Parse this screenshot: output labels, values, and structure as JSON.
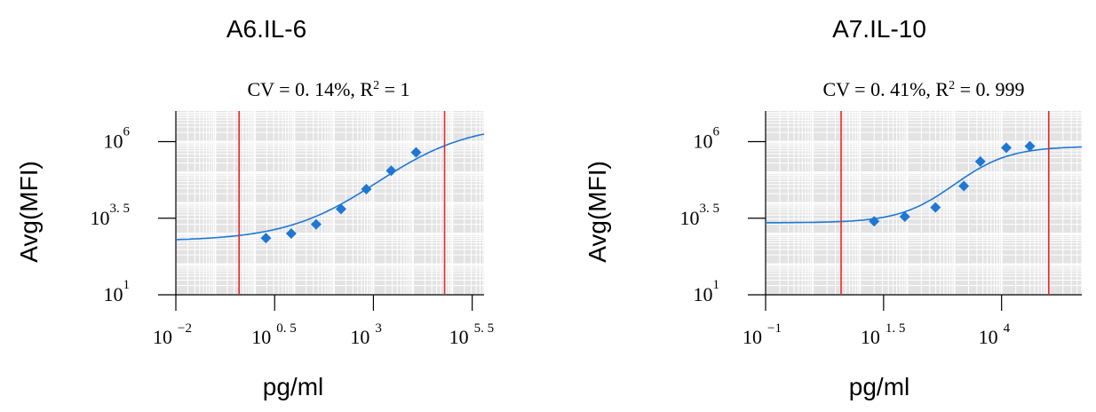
{
  "chart_data": [
    {
      "type": "scatter",
      "title": "A6.IL-6",
      "stats": {
        "cv": "CV = 0. 14%",
        "r2_prefix": ", R",
        "r2_sup": "2",
        "r2_value": " = 1"
      },
      "xlabel": "pg/ml",
      "ylabel": "Avg(MFI)",
      "x_scale": "log10",
      "y_scale": "log10",
      "xlim_log10": [
        -2,
        5.8
      ],
      "ylim_log10": [
        1,
        7.0
      ],
      "x_ticks": [
        {
          "base": "10",
          "exp": "−2",
          "log10": -2
        },
        {
          "base": "10",
          "exp": "0. 5",
          "log10": 0.5
        },
        {
          "base": "10",
          "exp": "3",
          "log10": 3
        },
        {
          "base": "10",
          "exp": "5. 5",
          "log10": 5.5
        }
      ],
      "y_ticks": [
        {
          "base": "10",
          "exp": "1",
          "log10": 1
        },
        {
          "base": "10",
          "exp": "3. 5",
          "log10": 3.5
        },
        {
          "base": "10",
          "exp": "6",
          "log10": 6
        }
      ],
      "points_log10": [
        [
          0.28,
          2.85
        ],
        [
          0.92,
          3.0
        ],
        [
          1.55,
          3.3
        ],
        [
          2.18,
          3.8
        ],
        [
          2.82,
          4.45
        ],
        [
          3.45,
          5.05
        ],
        [
          4.08,
          5.65
        ]
      ],
      "curve": {
        "bottom": 2.75,
        "top": 6.6,
        "mid": 3.1,
        "slope": 0.85
      },
      "limits_log10": [
        -0.4,
        4.8
      ],
      "series_color": "#1f77d4",
      "limit_color": "#e8282a",
      "grid": true,
      "background": "#e3e3e3"
    },
    {
      "type": "scatter",
      "title": "A7.IL-10",
      "stats": {
        "cv": "CV = 0. 41%",
        "r2_prefix": ", R",
        "r2_sup": "2",
        "r2_value": " = 0. 999"
      },
      "xlabel": "pg/ml",
      "ylabel": "Avg(MFI)",
      "x_scale": "log10",
      "y_scale": "log10",
      "xlim_log10": [
        -1,
        5.7
      ],
      "ylim_log10": [
        1,
        7.0
      ],
      "x_ticks": [
        {
          "base": "10",
          "exp": "−1",
          "log10": -1
        },
        {
          "base": "10",
          "exp": "1. 5",
          "log10": 1.5
        },
        {
          "base": "10",
          "exp": "4",
          "log10": 4
        }
      ],
      "y_ticks": [
        {
          "base": "10",
          "exp": "1",
          "log10": 1
        },
        {
          "base": "10",
          "exp": "3. 5",
          "log10": 3.5
        },
        {
          "base": "10",
          "exp": "6",
          "log10": 6
        }
      ],
      "points_log10": [
        [
          1.3,
          3.4
        ],
        [
          1.95,
          3.55
        ],
        [
          2.6,
          3.85
        ],
        [
          3.2,
          4.55
        ],
        [
          3.55,
          5.35
        ],
        [
          4.1,
          5.8
        ],
        [
          4.6,
          5.85
        ]
      ],
      "curve": {
        "bottom": 3.35,
        "top": 5.85,
        "mid": 3.0,
        "slope": 1.7
      },
      "limits_log10": [
        0.6,
        5.0
      ],
      "series_color": "#1f77d4",
      "limit_color": "#e8282a",
      "grid": true,
      "background": "#e3e3e3"
    }
  ]
}
